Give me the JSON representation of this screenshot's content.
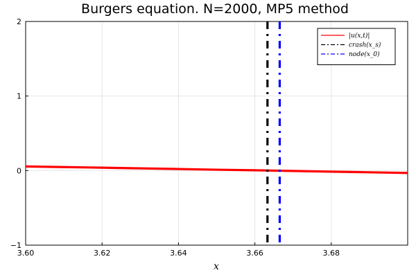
{
  "chart_data": {
    "type": "line",
    "title": "Burgers equation. N=2000, MP5 method",
    "xlabel": "x",
    "ylabel": "",
    "xlim": [
      3.6,
      3.7
    ],
    "ylim": [
      -1,
      2
    ],
    "xticks": [
      3.6,
      3.62,
      3.64,
      3.66,
      3.68
    ],
    "xtick_labels": [
      "3.60",
      "3.62",
      "3.64",
      "3.66",
      "3.68"
    ],
    "yticks": [
      -1,
      0,
      1,
      2
    ],
    "ytick_labels": [
      "−1",
      "0",
      "1",
      "2"
    ],
    "grid": true,
    "legend_position": "top-right",
    "series": [
      {
        "name": "|u(x,t)|",
        "style": "solid",
        "color": "#ff0000",
        "x": [
          3.6,
          3.61,
          3.62,
          3.63,
          3.64,
          3.65,
          3.66,
          3.67,
          3.68,
          3.69,
          3.7
        ],
        "y": [
          0.055,
          0.047,
          0.039,
          0.03,
          0.021,
          0.012,
          0.004,
          -0.005,
          -0.014,
          -0.023,
          -0.032
        ]
      },
      {
        "name": "crash(x_s)",
        "style": "dashdot",
        "color": "#000000",
        "vline": 3.6633
      },
      {
        "name": "node(x_0)",
        "style": "dashdot",
        "color": "#0000ff",
        "vline": 3.6665
      }
    ]
  }
}
